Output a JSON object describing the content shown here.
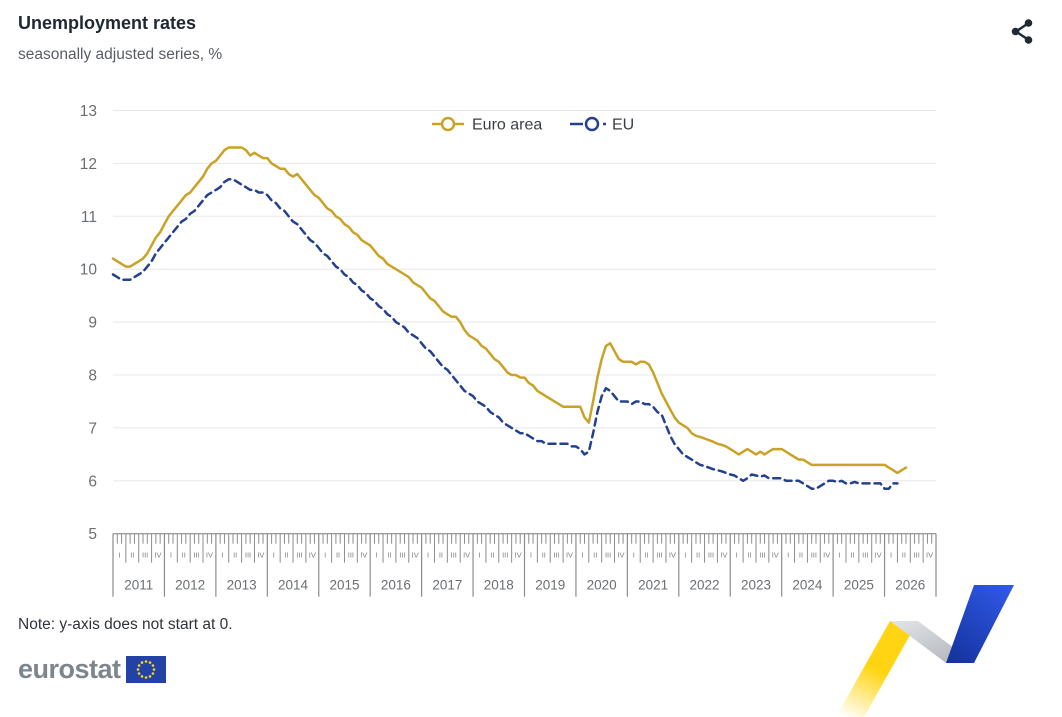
{
  "header": {
    "title": "Unemployment rates",
    "subtitle": "seasonally adjusted series, %"
  },
  "note": {
    "text": "Note: y-axis does not start at 0."
  },
  "footer": {
    "logo_text": "eurostat"
  },
  "icons": {
    "share": "share-icon",
    "eu_flag": "circle-of-12-stars"
  },
  "colors": {
    "euro_area": "#c9a227",
    "eu": "#24418e",
    "grid": "#e8e8ec",
    "axis": "#8c8c8c",
    "axis_text": "#6b6f73",
    "ribbon_yellow": "#ffd513",
    "ribbon_gray": "#c3c7cc",
    "ribbon_blue_dark": "#15339f",
    "ribbon_blue_light": "#2e57e3",
    "flag_blue": "#2243a5",
    "star_yellow": "#ffd617"
  },
  "chart_data": {
    "type": "line",
    "title": "Unemployment rates",
    "subtitle": "seasonally adjusted series, %",
    "unit": "%",
    "ylim": [
      5,
      13
    ],
    "yticks": [
      5,
      6,
      7,
      8,
      9,
      10,
      11,
      12,
      13
    ],
    "grid": true,
    "legend_position": "top-center",
    "x_unit": "month",
    "x_start": "2011-01",
    "years": [
      2011,
      2012,
      2013,
      2014,
      2015,
      2016,
      2017,
      2018,
      2019,
      2020,
      2021,
      2022,
      2023,
      2024,
      2025,
      2026
    ],
    "quarter_labels": [
      "I",
      "II",
      "III",
      "IV"
    ],
    "series": [
      {
        "name": "Euro area",
        "color": "#c9a227",
        "dash": "solid",
        "values": [
          10.2,
          10.15,
          10.1,
          10.05,
          10.05,
          10.1,
          10.15,
          10.2,
          10.3,
          10.45,
          10.6,
          10.7,
          10.85,
          11.0,
          11.1,
          11.2,
          11.3,
          11.4,
          11.45,
          11.55,
          11.65,
          11.75,
          11.9,
          12.0,
          12.05,
          12.15,
          12.25,
          12.3,
          12.3,
          12.3,
          12.3,
          12.25,
          12.15,
          12.2,
          12.15,
          12.1,
          12.1,
          12.0,
          11.95,
          11.9,
          11.9,
          11.8,
          11.75,
          11.8,
          11.7,
          11.6,
          11.5,
          11.4,
          11.35,
          11.25,
          11.15,
          11.1,
          11.0,
          10.95,
          10.85,
          10.8,
          10.7,
          10.65,
          10.55,
          10.5,
          10.45,
          10.35,
          10.25,
          10.2,
          10.1,
          10.05,
          10.0,
          9.95,
          9.9,
          9.85,
          9.75,
          9.7,
          9.65,
          9.55,
          9.45,
          9.4,
          9.3,
          9.2,
          9.15,
          9.1,
          9.1,
          9.0,
          8.85,
          8.75,
          8.7,
          8.65,
          8.55,
          8.5,
          8.4,
          8.3,
          8.25,
          8.15,
          8.05,
          8.0,
          8.0,
          7.95,
          7.95,
          7.85,
          7.8,
          7.7,
          7.65,
          7.6,
          7.55,
          7.5,
          7.45,
          7.4,
          7.4,
          7.4,
          7.4,
          7.4,
          7.2,
          7.1,
          7.5,
          7.95,
          8.3,
          8.55,
          8.6,
          8.45,
          8.3,
          8.25,
          8.25,
          8.25,
          8.2,
          8.25,
          8.25,
          8.2,
          8.05,
          7.85,
          7.65,
          7.5,
          7.35,
          7.2,
          7.1,
          7.05,
          7.0,
          6.9,
          6.85,
          6.83,
          6.8,
          6.77,
          6.74,
          6.7,
          6.68,
          6.65,
          6.6,
          6.55,
          6.5,
          6.55,
          6.6,
          6.55,
          6.5,
          6.55,
          6.5,
          6.55,
          6.6,
          6.6,
          6.6,
          6.55,
          6.5,
          6.45,
          6.4,
          6.4,
          6.35,
          6.3,
          6.3,
          6.3,
          6.3,
          6.3,
          6.3,
          6.3,
          6.3,
          6.3,
          6.3,
          6.3,
          6.3,
          6.3,
          6.3,
          6.3,
          6.3,
          6.3,
          6.3,
          6.25,
          6.2,
          6.15,
          6.2,
          6.25
        ]
      },
      {
        "name": "EU",
        "color": "#24418e",
        "dash": "dashed",
        "values": [
          9.9,
          9.85,
          9.8,
          9.8,
          9.8,
          9.85,
          9.9,
          9.95,
          10.05,
          10.15,
          10.3,
          10.4,
          10.5,
          10.6,
          10.7,
          10.8,
          10.9,
          10.95,
          11.05,
          11.1,
          11.2,
          11.3,
          11.4,
          11.45,
          11.5,
          11.55,
          11.65,
          11.7,
          11.7,
          11.65,
          11.6,
          11.55,
          11.5,
          11.5,
          11.45,
          11.45,
          11.4,
          11.3,
          11.25,
          11.15,
          11.1,
          11.0,
          10.9,
          10.85,
          10.75,
          10.65,
          10.55,
          10.5,
          10.4,
          10.3,
          10.25,
          10.15,
          10.05,
          10.0,
          9.9,
          9.85,
          9.75,
          9.7,
          9.6,
          9.55,
          9.45,
          9.4,
          9.3,
          9.25,
          9.15,
          9.1,
          9.0,
          8.95,
          8.9,
          8.8,
          8.75,
          8.7,
          8.6,
          8.5,
          8.45,
          8.35,
          8.25,
          8.15,
          8.1,
          8.0,
          7.9,
          7.8,
          7.7,
          7.65,
          7.6,
          7.5,
          7.45,
          7.4,
          7.3,
          7.25,
          7.2,
          7.1,
          7.05,
          7.0,
          6.95,
          6.9,
          6.9,
          6.85,
          6.8,
          6.75,
          6.75,
          6.7,
          6.7,
          6.7,
          6.7,
          6.7,
          6.7,
          6.65,
          6.65,
          6.6,
          6.5,
          6.55,
          6.9,
          7.3,
          7.6,
          7.75,
          7.7,
          7.6,
          7.5,
          7.5,
          7.5,
          7.45,
          7.5,
          7.5,
          7.45,
          7.45,
          7.4,
          7.3,
          7.25,
          7.05,
          6.85,
          6.7,
          6.6,
          6.5,
          6.45,
          6.4,
          6.35,
          6.3,
          6.28,
          6.25,
          6.22,
          6.2,
          6.18,
          6.15,
          6.12,
          6.1,
          6.05,
          6.0,
          6.05,
          6.12,
          6.1,
          6.08,
          6.1,
          6.05,
          6.05,
          6.05,
          6.05,
          6.0,
          6.0,
          6.0,
          6.0,
          5.95,
          5.9,
          5.85,
          5.85,
          5.9,
          5.95,
          6.0,
          6.0,
          5.98,
          6.0,
          5.95,
          5.95,
          5.98,
          5.95,
          5.95,
          5.95,
          5.95,
          5.95,
          5.95,
          5.85,
          5.85,
          5.95,
          5.95
        ]
      }
    ]
  }
}
